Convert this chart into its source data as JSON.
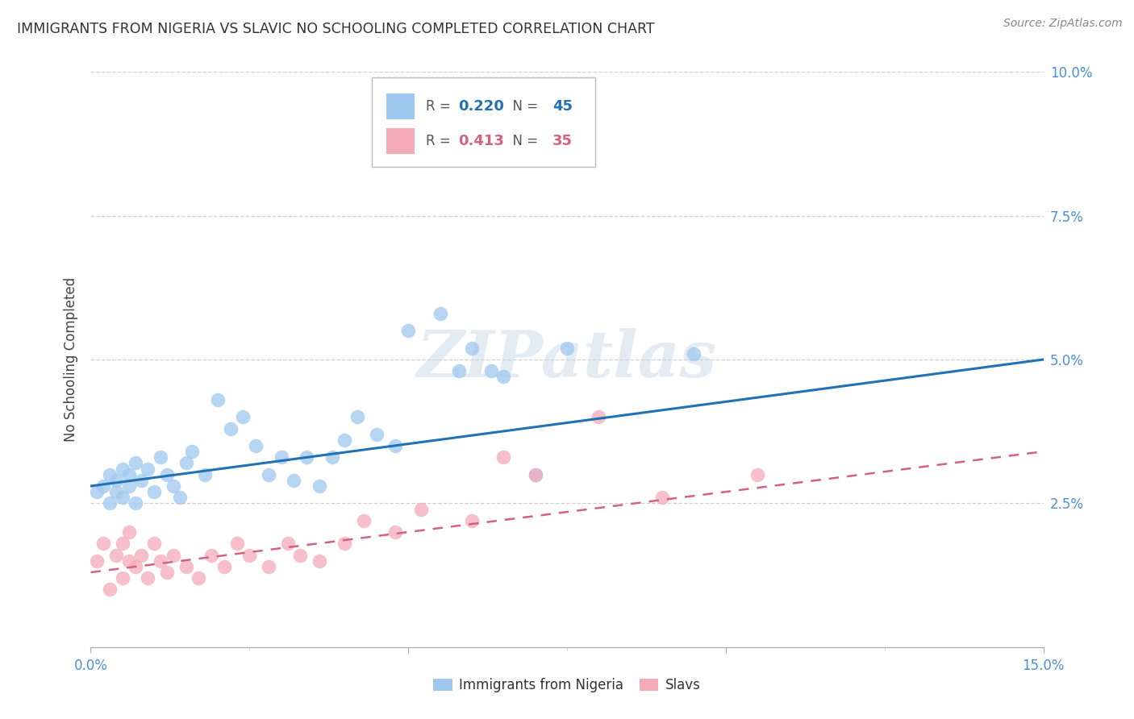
{
  "title": "IMMIGRANTS FROM NIGERIA VS SLAVIC NO SCHOOLING COMPLETED CORRELATION CHART",
  "source": "Source: ZipAtlas.com",
  "ylabel": "No Schooling Completed",
  "x_min": 0.0,
  "x_max": 0.15,
  "y_min": 0.0,
  "y_max": 0.1,
  "x_ticks_major": [
    0.0,
    0.15
  ],
  "x_tick_labels_major": [
    "0.0%",
    "15.0%"
  ],
  "x_ticks_minor": [
    0.025,
    0.05,
    0.075,
    0.1,
    0.125
  ],
  "y_ticks": [
    0.0,
    0.025,
    0.05,
    0.075,
    0.1
  ],
  "y_tick_labels_right": [
    "",
    "2.5%",
    "5.0%",
    "7.5%",
    "10.0%"
  ],
  "nigeria_R": 0.22,
  "nigeria_N": 45,
  "slavic_R": 0.413,
  "slavic_N": 35,
  "nigeria_color": "#9ec8f0",
  "slavic_color": "#f5aab8",
  "nigeria_line_color": "#2171b5",
  "slavic_line_color": "#d4627a",
  "title_color": "#333333",
  "axis_label_color": "#444444",
  "tick_color": "#4a90d9",
  "grid_color": "#d0d0d0",
  "watermark": "ZIPatlas",
  "nigeria_x": [
    0.001,
    0.002,
    0.003,
    0.003,
    0.004,
    0.004,
    0.005,
    0.005,
    0.006,
    0.006,
    0.007,
    0.007,
    0.008,
    0.009,
    0.01,
    0.011,
    0.012,
    0.013,
    0.014,
    0.015,
    0.016,
    0.018,
    0.02,
    0.022,
    0.024,
    0.026,
    0.028,
    0.03,
    0.032,
    0.034,
    0.036,
    0.038,
    0.04,
    0.042,
    0.045,
    0.048,
    0.05,
    0.055,
    0.058,
    0.06,
    0.063,
    0.065,
    0.07,
    0.075,
    0.095
  ],
  "nigeria_y": [
    0.027,
    0.028,
    0.025,
    0.03,
    0.027,
    0.029,
    0.026,
    0.031,
    0.028,
    0.03,
    0.025,
    0.032,
    0.029,
    0.031,
    0.027,
    0.033,
    0.03,
    0.028,
    0.026,
    0.032,
    0.034,
    0.03,
    0.043,
    0.038,
    0.04,
    0.035,
    0.03,
    0.033,
    0.029,
    0.033,
    0.028,
    0.033,
    0.036,
    0.04,
    0.037,
    0.035,
    0.055,
    0.058,
    0.048,
    0.052,
    0.048,
    0.047,
    0.03,
    0.052,
    0.051
  ],
  "slavic_x": [
    0.001,
    0.002,
    0.003,
    0.004,
    0.005,
    0.005,
    0.006,
    0.006,
    0.007,
    0.008,
    0.009,
    0.01,
    0.011,
    0.012,
    0.013,
    0.015,
    0.017,
    0.019,
    0.021,
    0.023,
    0.025,
    0.028,
    0.031,
    0.033,
    0.036,
    0.04,
    0.043,
    0.048,
    0.052,
    0.06,
    0.065,
    0.07,
    0.08,
    0.09,
    0.105
  ],
  "slavic_y": [
    0.015,
    0.018,
    0.01,
    0.016,
    0.012,
    0.018,
    0.015,
    0.02,
    0.014,
    0.016,
    0.012,
    0.018,
    0.015,
    0.013,
    0.016,
    0.014,
    0.012,
    0.016,
    0.014,
    0.018,
    0.016,
    0.014,
    0.018,
    0.016,
    0.015,
    0.018,
    0.022,
    0.02,
    0.024,
    0.022,
    0.033,
    0.03,
    0.04,
    0.026,
    0.03
  ],
  "nigeria_line_x0": 0.0,
  "nigeria_line_y0": 0.028,
  "nigeria_line_x1": 0.15,
  "nigeria_line_y1": 0.05,
  "slavic_line_x0": 0.0,
  "slavic_line_y0": 0.013,
  "slavic_line_x1": 0.15,
  "slavic_line_y1": 0.034
}
